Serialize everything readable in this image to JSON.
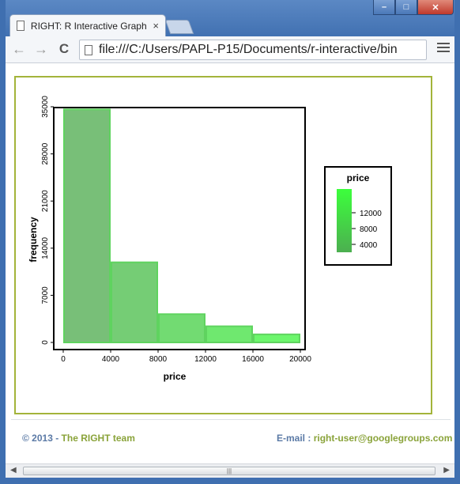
{
  "browser": {
    "tab_title": "RIGHT: R Interactive Graph",
    "tab_close": "×",
    "url": "file:///C:/Users/PAPL-P15/Documents/r-interactive/bin",
    "nav_back": "←",
    "nav_forward": "→",
    "nav_reload": "C",
    "win_min": "–",
    "win_max": "□",
    "win_close": "✕"
  },
  "footer": {
    "copyright_prefix": "© 2013 - ",
    "team": "The RIGHT team",
    "email_label": "E-mail : ",
    "email": "right-user@googlegroups.com"
  },
  "scrollbar": {
    "left_arrow": "◀",
    "right_arrow": "▶",
    "grip": "|||"
  },
  "chart_data": {
    "type": "bar",
    "xlabel": "price",
    "ylabel": "frequency",
    "bins": [
      {
        "x0": 0,
        "x1": 4000,
        "value": 34600,
        "price": 2000
      },
      {
        "x0": 4000,
        "x1": 8000,
        "value": 11900,
        "price": 6000
      },
      {
        "x0": 8000,
        "x1": 12000,
        "value": 4200,
        "price": 10000
      },
      {
        "x0": 12000,
        "x1": 16000,
        "value": 2400,
        "price": 14000
      },
      {
        "x0": 16000,
        "x1": 20000,
        "value": 1200,
        "price": 18000
      }
    ],
    "xticks": [
      0,
      4000,
      8000,
      12000,
      16000,
      20000
    ],
    "yticks": [
      0,
      7000,
      14000,
      21000,
      28000,
      35000
    ],
    "xlim": [
      0,
      20000
    ],
    "ylim": [
      0,
      35000
    ],
    "grid": false,
    "legend": {
      "title": "price",
      "placement": "right",
      "ticks": [
        12000,
        8000,
        4000
      ],
      "range": [
        2000,
        18000
      ],
      "color_low": "#4caf50",
      "color_high": "#3cff3c"
    }
  }
}
